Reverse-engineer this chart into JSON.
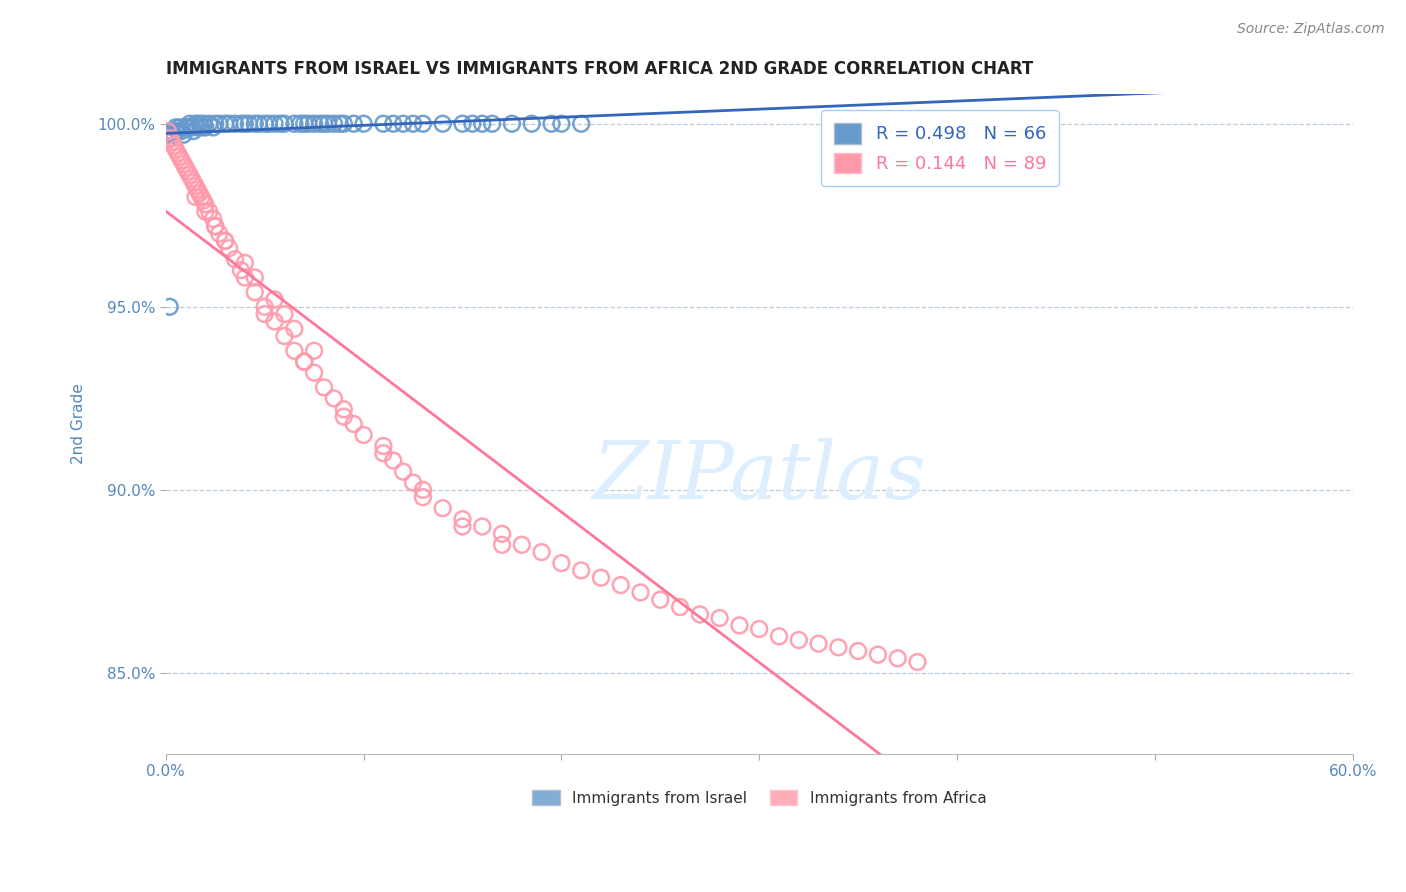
{
  "title": "IMMIGRANTS FROM ISRAEL VS IMMIGRANTS FROM AFRICA 2ND GRADE CORRELATION CHART",
  "source": "Source: ZipAtlas.com",
  "ylabel": "2nd Grade",
  "xlim": [
    0.0,
    0.6
  ],
  "ylim": [
    0.828,
    1.008
  ],
  "xticks": [
    0.0,
    0.1,
    0.2,
    0.3,
    0.4,
    0.5,
    0.6
  ],
  "xticklabels": [
    "0.0%",
    "",
    "",
    "",
    "",
    "",
    "60.0%"
  ],
  "yticks": [
    0.85,
    0.9,
    0.95,
    1.0
  ],
  "yticklabels": [
    "85.0%",
    "90.0%",
    "95.0%",
    "100.0%"
  ],
  "israel_color": "#6699CC",
  "africa_color": "#FF99AA",
  "israel_line_color": "#3366BB",
  "africa_line_color": "#FF7799",
  "background_color": "#FFFFFF",
  "grid_color": "#BBCCDD",
  "axis_label_color": "#5588BB",
  "title_color": "#222222",
  "watermark_color": "#DDEEFF",
  "israel_x": [
    0.001,
    0.002,
    0.003,
    0.004,
    0.005,
    0.006,
    0.007,
    0.008,
    0.009,
    0.01,
    0.011,
    0.012,
    0.013,
    0.014,
    0.015,
    0.016,
    0.017,
    0.018,
    0.019,
    0.02,
    0.022,
    0.024,
    0.025,
    0.027,
    0.03,
    0.032,
    0.035,
    0.038,
    0.04,
    0.042,
    0.045,
    0.047,
    0.05,
    0.052,
    0.055,
    0.058,
    0.06,
    0.065,
    0.068,
    0.07,
    0.072,
    0.075,
    0.078,
    0.08,
    0.082,
    0.085,
    0.088,
    0.09,
    0.095,
    0.1,
    0.11,
    0.115,
    0.12,
    0.125,
    0.13,
    0.14,
    0.15,
    0.155,
    0.16,
    0.165,
    0.175,
    0.185,
    0.195,
    0.2,
    0.21,
    0.002
  ],
  "israel_y": [
    0.997,
    0.996,
    0.998,
    0.997,
    0.999,
    0.998,
    0.999,
    0.998,
    0.997,
    0.999,
    0.999,
    1.0,
    0.999,
    0.998,
    1.0,
    0.999,
    1.0,
    0.999,
    1.0,
    0.999,
    1.0,
    0.999,
    1.0,
    1.0,
    1.0,
    1.0,
    1.0,
    1.0,
    1.0,
    1.0,
    1.0,
    1.0,
    1.0,
    1.0,
    1.0,
    1.0,
    1.0,
    1.0,
    1.0,
    1.0,
    1.0,
    1.0,
    1.0,
    1.0,
    1.0,
    1.0,
    1.0,
    1.0,
    1.0,
    1.0,
    1.0,
    1.0,
    1.0,
    1.0,
    1.0,
    1.0,
    1.0,
    1.0,
    1.0,
    1.0,
    1.0,
    1.0,
    1.0,
    1.0,
    1.0,
    0.95
  ],
  "africa_x": [
    0.001,
    0.002,
    0.003,
    0.004,
    0.005,
    0.006,
    0.007,
    0.008,
    0.009,
    0.01,
    0.011,
    0.012,
    0.013,
    0.014,
    0.015,
    0.016,
    0.017,
    0.018,
    0.019,
    0.02,
    0.022,
    0.024,
    0.025,
    0.027,
    0.03,
    0.032,
    0.035,
    0.038,
    0.04,
    0.045,
    0.05,
    0.055,
    0.06,
    0.065,
    0.07,
    0.075,
    0.08,
    0.085,
    0.09,
    0.095,
    0.1,
    0.11,
    0.115,
    0.12,
    0.125,
    0.13,
    0.14,
    0.15,
    0.16,
    0.17,
    0.18,
    0.19,
    0.2,
    0.21,
    0.22,
    0.23,
    0.24,
    0.25,
    0.26,
    0.27,
    0.28,
    0.29,
    0.3,
    0.31,
    0.32,
    0.33,
    0.34,
    0.35,
    0.36,
    0.37,
    0.38,
    0.05,
    0.07,
    0.09,
    0.11,
    0.13,
    0.15,
    0.17,
    0.015,
    0.02,
    0.025,
    0.03,
    0.04,
    0.045,
    0.055,
    0.06,
    0.065,
    0.075
  ],
  "africa_y": [
    0.998,
    0.996,
    0.995,
    0.994,
    0.993,
    0.992,
    0.991,
    0.99,
    0.989,
    0.988,
    0.987,
    0.986,
    0.985,
    0.984,
    0.983,
    0.982,
    0.981,
    0.98,
    0.979,
    0.978,
    0.976,
    0.974,
    0.972,
    0.97,
    0.968,
    0.966,
    0.963,
    0.96,
    0.958,
    0.954,
    0.95,
    0.946,
    0.942,
    0.938,
    0.935,
    0.932,
    0.928,
    0.925,
    0.922,
    0.918,
    0.915,
    0.91,
    0.908,
    0.905,
    0.902,
    0.9,
    0.895,
    0.892,
    0.89,
    0.888,
    0.885,
    0.883,
    0.88,
    0.878,
    0.876,
    0.874,
    0.872,
    0.87,
    0.868,
    0.866,
    0.865,
    0.863,
    0.862,
    0.86,
    0.859,
    0.858,
    0.857,
    0.856,
    0.855,
    0.854,
    0.853,
    0.948,
    0.935,
    0.92,
    0.912,
    0.898,
    0.89,
    0.885,
    0.98,
    0.976,
    0.972,
    0.968,
    0.962,
    0.958,
    0.952,
    0.948,
    0.944,
    0.938
  ]
}
